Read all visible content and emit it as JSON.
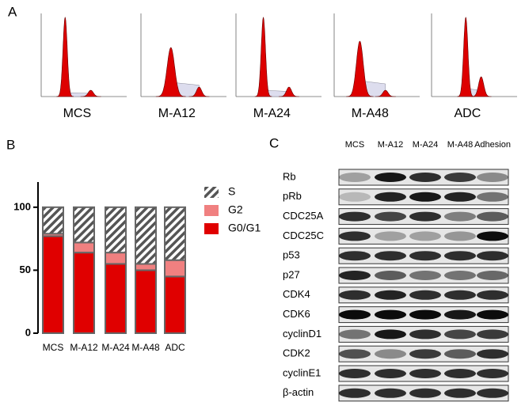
{
  "panels": {
    "a": "A",
    "b": "B",
    "c": "C"
  },
  "histograms": {
    "labels": [
      "MCS",
      "M-A12",
      "M-A24",
      "M-A48",
      "ADC"
    ]
  },
  "chart_data": {
    "type": "stacked_bar",
    "categories": [
      "MCS",
      "M-A12",
      "M-A24",
      "M-A48",
      "ADC"
    ],
    "series": [
      {
        "name": "G0/G1",
        "color": "#e00000",
        "values": [
          77,
          64,
          55,
          50,
          45
        ]
      },
      {
        "name": "G2",
        "color": "#f08080",
        "values": [
          2,
          8,
          9,
          5,
          13
        ]
      },
      {
        "name": "S",
        "color": "#555555",
        "pattern": "hatch",
        "values": [
          21,
          28,
          36,
          45,
          42
        ]
      }
    ],
    "ylim": [
      0,
      120
    ],
    "yticks": [
      0,
      50,
      100
    ],
    "legend": "right"
  },
  "blot": {
    "lanes": [
      "MCS",
      "M-A12",
      "M-A24",
      "M-A48",
      "Adhesion"
    ],
    "proteins": [
      "Rb",
      "pRb",
      "CDC25A",
      "CDC25C",
      "p53",
      "p27",
      "CDK4",
      "CDK6",
      "cyclinD1",
      "CDK2",
      "cyclinE1",
      "β-actin"
    ]
  }
}
